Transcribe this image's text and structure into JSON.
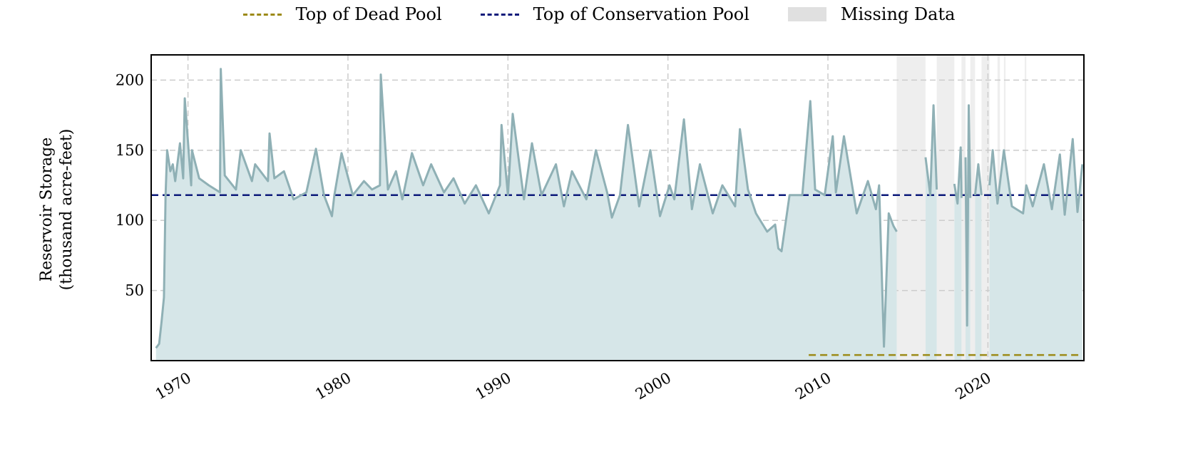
{
  "colors": {
    "storage_line": "#8fb0b5",
    "storage_fill": "#d6e6e8",
    "dead_pool": "#9c8a17",
    "conservation_pool": "#0c1a7a",
    "missing_data": "#e0e0e0",
    "grid": "#cccccc"
  },
  "legend": {
    "dead_pool": "Top of Dead Pool",
    "conservation_pool": "Top of Conservation Pool",
    "missing_data": "Missing Data"
  },
  "chart_data": {
    "type": "area",
    "title": "",
    "xlabel": "",
    "ylabel": [
      "Reservoir Storage",
      "(thousand acre-feet)"
    ],
    "xlim": [
      1967.7,
      2026.0
    ],
    "ylim": [
      0,
      218
    ],
    "x_ticks": [
      1970,
      1980,
      1990,
      2000,
      2010,
      2020
    ],
    "y_ticks": [
      50,
      100,
      150,
      200
    ],
    "grid": true,
    "legend_placement": "top-center",
    "reference_lines": [
      {
        "name": "Top of Dead Pool",
        "y": 4,
        "x_start": 2008.8,
        "x_end": 2025.9
      },
      {
        "name": "Top of Conservation Pool",
        "y": 118,
        "x_start": 1967.7,
        "x_end": 2025.9
      }
    ],
    "missing_ranges": [
      [
        2014.3,
        2016.1
      ],
      [
        2016.8,
        2017.9
      ],
      [
        2018.35,
        2018.6
      ],
      [
        2018.9,
        2019.2
      ],
      [
        2019.6,
        2020.1
      ],
      [
        2020.6,
        2020.75
      ],
      [
        2021.0,
        2021.1
      ],
      [
        2022.3,
        2022.4
      ]
    ],
    "series": [
      {
        "name": "Reservoir Storage",
        "segments": [
          {
            "x": [
              1968.0,
              1968.2,
              1968.35,
              1968.5,
              1968.6,
              1968.7,
              1968.9,
              1969.05,
              1969.2,
              1969.5,
              1969.7,
              1969.8,
              1970.2,
              1970.25,
              1970.7,
              1971.3,
              1972.0,
              1972.05,
              1972.3,
              1973.0,
              1973.3,
              1974.0,
              1974.2,
              1975.0,
              1975.1,
              1975.4,
              1976.0,
              1976.6,
              1977.4,
              1978.0,
              1978.5,
              1979.0,
              1979.15,
              1979.6,
              1980.3,
              1981.0,
              1981.5,
              1982.0,
              1982.05,
              1982.5,
              1983.0,
              1983.4,
              1984.0,
              1984.7,
              1985.2,
              1986.0,
              1986.6,
              1987.3,
              1988.0,
              1988.8,
              1989.5,
              1989.6,
              1990.0,
              1990.3,
              1991.0,
              1991.5,
              1992.1,
              1993.0,
              1993.5,
              1994.0,
              1994.9,
              1995.5,
              1996.2,
              1996.5,
              1997.0,
              1997.5,
              1998.2,
              1998.9,
              1999.5,
              2000.1,
              2000.4,
              2001.0,
              2001.5,
              2002.0,
              2002.8,
              2003.4,
              2004.2,
              2004.5,
              2005.0,
              2005.5,
              2006.2,
              2006.7,
              2006.9,
              2007.1,
              2007.6,
              2008.4,
              2008.9,
              2009.2,
              2009.8,
              2010.3,
              2010.5,
              2011.0,
              2011.8,
              2012.5,
              2013.0,
              2013.2,
              2013.5,
              2013.8,
              2014.1,
              2014.3
            ],
            "y": [
              9,
              12,
              28,
              45,
              118,
              150,
              135,
              140,
              128,
              155,
              130,
              187,
              125,
              150,
              130,
              125,
              120,
              208,
              132,
              122,
              150,
              128,
              140,
              128,
              162,
              130,
              135,
              115,
              120,
              151,
              118,
              103,
              118,
              148,
              118,
              128,
              122,
              125,
              204,
              122,
              135,
              115,
              148,
              125,
              140,
              120,
              130,
              112,
              125,
              105,
              125,
              168,
              118,
              176,
              115,
              155,
              118,
              140,
              110,
              135,
              115,
              150,
              120,
              102,
              118,
              168,
              110,
              150,
              103,
              125,
              115,
              172,
              108,
              140,
              105,
              125,
              110,
              165,
              122,
              105,
              92,
              97,
              80,
              78,
              118,
              118,
              185,
              122,
              118,
              160,
              120,
              160,
              105,
              128,
              108,
              125,
              10,
              105,
              96,
              92
            ]
          },
          {
            "x": [
              2016.1,
              2016.4,
              2016.6,
              2016.8
            ],
            "y": [
              145,
              118,
              182,
              122
            ]
          },
          {
            "x": [
              2017.9,
              2018.1,
              2018.3,
              2018.35
            ],
            "y": [
              126,
              112,
              152,
              116
            ]
          },
          {
            "x": [
              2018.6,
              2018.7,
              2018.8,
              2018.9
            ],
            "y": [
              145,
              25,
              182,
              116
            ]
          },
          {
            "x": [
              2019.2,
              2019.4,
              2019.6
            ],
            "y": [
              118,
              140,
              118
            ]
          },
          {
            "x": [
              2020.1,
              2020.3,
              2020.6,
              2021.0,
              2021.5,
              2022.2,
              2022.4,
              2022.8,
              2023.5,
              2024.0,
              2024.5,
              2024.8,
              2025.3,
              2025.6,
              2025.9
            ],
            "y": [
              125,
              150,
              112,
              150,
              110,
              105,
              125,
              110,
              140,
              108,
              147,
              104,
              158,
              106,
              140
            ]
          }
        ]
      }
    ]
  }
}
